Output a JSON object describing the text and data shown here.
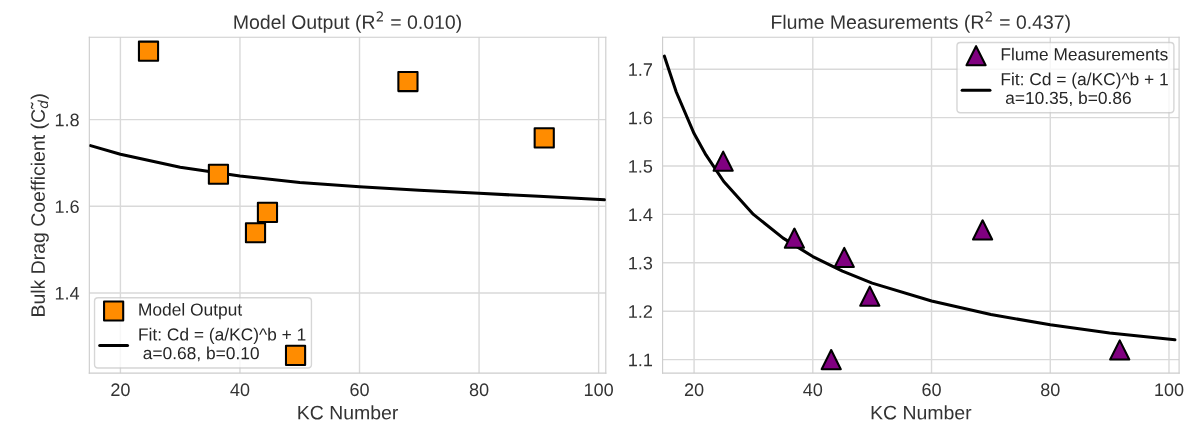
{
  "chart_data": [
    {
      "type": "scatter",
      "title": "Model Output (R$^{2}$ = 0.010)",
      "xlabel": "KC Number",
      "ylabel": "Bulk Drag Coefficient (C̃$_{d}$)",
      "xlim": [
        14.8,
        101.2
      ],
      "ylim": [
        1.215,
        1.99
      ],
      "xticks": [
        20,
        40,
        60,
        80,
        100
      ],
      "yticks": [
        1.4,
        1.6,
        1.8
      ],
      "grid": true,
      "legend": "lower left",
      "series": [
        {
          "name": "Model Output",
          "marker": "square",
          "color": "#ff8c00",
          "x": [
            24.7,
            36.4,
            42.6,
            44.6,
            49.3,
            68.1,
            90.9
          ],
          "values": [
            1.958,
            1.674,
            1.539,
            1.586,
            1.256,
            1.888,
            1.758
          ]
        },
        {
          "name": "Fit: Cd = (a/KC)^b + 1\n a=0.68, b=0.10",
          "type": "line",
          "marker": "none",
          "color": "#000000",
          "x": [
            15,
            20,
            30,
            40,
            50,
            60,
            70,
            80,
            90,
            101
          ],
          "values": [
            1.74,
            1.72,
            1.69,
            1.67,
            1.655,
            1.645,
            1.637,
            1.63,
            1.623,
            1.615
          ]
        }
      ]
    },
    {
      "type": "scatter",
      "title": "Flume Measurements (R$^{2}$ = 0.437)",
      "xlabel": "KC Number",
      "xlim": [
        14.7,
        101.7
      ],
      "ylim": [
        1.072,
        1.766
      ],
      "xticks": [
        20,
        40,
        60,
        80,
        100
      ],
      "yticks": [
        1.1,
        1.2,
        1.3,
        1.4,
        1.5,
        1.6,
        1.7
      ],
      "grid": true,
      "legend": "top right",
      "series": [
        {
          "name": "Flume Measurements",
          "marker": "triangle",
          "color": "#800080",
          "x": [
            24.9,
            36.9,
            43.1,
            45.3,
            49.6,
            68.6,
            91.7
          ],
          "values": [
            1.51,
            1.351,
            1.1,
            1.311,
            1.231,
            1.368,
            1.12
          ]
        },
        {
          "name": "Fit: Cd = (a/KC)^b + 1\n a=10.35, b=0.86",
          "type": "line",
          "marker": "none",
          "color": "#000000",
          "x": [
            15,
            17,
            20,
            22,
            25,
            30,
            35,
            40,
            45,
            50,
            60,
            70,
            80,
            90,
            101
          ],
          "values": [
            1.727,
            1.653,
            1.567,
            1.523,
            1.468,
            1.4,
            1.351,
            1.313,
            1.283,
            1.258,
            1.221,
            1.193,
            1.172,
            1.155,
            1.141
          ]
        }
      ]
    }
  ]
}
